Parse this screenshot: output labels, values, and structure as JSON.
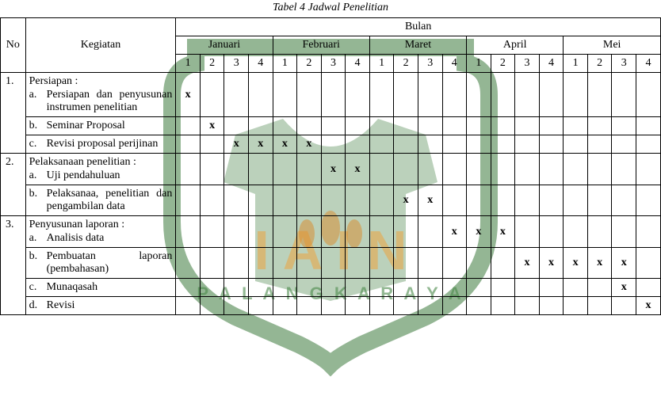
{
  "title": "Tabel 4 Jadwal Penelitian",
  "headers": {
    "no": "No",
    "kegiatan": "Kegiatan",
    "bulan": "Bulan",
    "months": [
      "Januari",
      "Februari",
      "Maret",
      "April",
      "Mei"
    ],
    "weeks": [
      "1",
      "2",
      "3",
      "4",
      "1",
      "2",
      "3",
      "4",
      "1",
      "2",
      "3",
      "4",
      "1",
      "2",
      "3",
      "4",
      "1",
      "2",
      "3",
      "4"
    ]
  },
  "rows": [
    {
      "no": "1.",
      "main": "Persiapan :",
      "sub": "a.  Persiapan dan penyusunan instrumen penelitian",
      "marks": [
        "x",
        "",
        "",
        "",
        "",
        "",
        "",
        "",
        "",
        "",
        "",
        "",
        "",
        "",
        "",
        "",
        "",
        "",
        "",
        ""
      ]
    },
    {
      "sub": "b.  Seminar Proposal",
      "marks": [
        "",
        "x",
        "",
        "",
        "",
        "",
        "",
        "",
        "",
        "",
        "",
        "",
        "",
        "",
        "",
        "",
        "",
        "",
        "",
        ""
      ]
    },
    {
      "sub": "c.  Revisi proposal perijinan",
      "marks": [
        "",
        "",
        "x",
        "x",
        "x",
        "x",
        "",
        "",
        "",
        "",
        "",
        "",
        "",
        "",
        "",
        "",
        "",
        "",
        "",
        ""
      ]
    },
    {
      "no": "2.",
      "main": "Pelaksanaan penelitian :",
      "sub": "a.  Uji pendahuluan",
      "marks": [
        "",
        "",
        "",
        "",
        "",
        "",
        "x",
        "x",
        "",
        "",
        "",
        "",
        "",
        "",
        "",
        "",
        "",
        "",
        "",
        ""
      ]
    },
    {
      "sub": "b.  Pelaksanaa, penelitian dan pengambilan data",
      "marks": [
        "",
        "",
        "",
        "",
        "",
        "",
        "",
        "",
        "",
        "x",
        "x",
        "",
        "",
        "",
        "",
        "",
        "",
        "",
        "",
        ""
      ]
    },
    {
      "no": "3.",
      "main": "Penyusunan laporan :",
      "sub": "a.  Analisis data",
      "marks": [
        "",
        "",
        "",
        "",
        "",
        "",
        "",
        "",
        "",
        "",
        "",
        "x",
        "x",
        "x",
        "",
        "",
        "",
        "",
        "",
        ""
      ]
    },
    {
      "sub": "b.  Pembuatan laporan (pembahasan)",
      "marks": [
        "",
        "",
        "",
        "",
        "",
        "",
        "",
        "",
        "",
        "",
        "",
        "",
        "",
        "",
        "x",
        "x",
        "x",
        "x",
        "x",
        ""
      ]
    },
    {
      "sub": "c.  Munaqasah",
      "marks": [
        "",
        "",
        "",
        "",
        "",
        "",
        "",
        "",
        "",
        "",
        "",
        "",
        "",
        "",
        "",
        "",
        "",
        "",
        "x",
        ""
      ]
    },
    {
      "sub": "d.  Revisi",
      "marks": [
        "",
        "",
        "",
        "",
        "",
        "",
        "",
        "",
        "",
        "",
        "",
        "",
        "",
        "",
        "",
        "",
        "",
        "",
        "",
        "x"
      ]
    }
  ],
  "style": {
    "border_color": "#000000",
    "x_weight": "bold",
    "font_family": "Times New Roman",
    "title_italic": true
  }
}
